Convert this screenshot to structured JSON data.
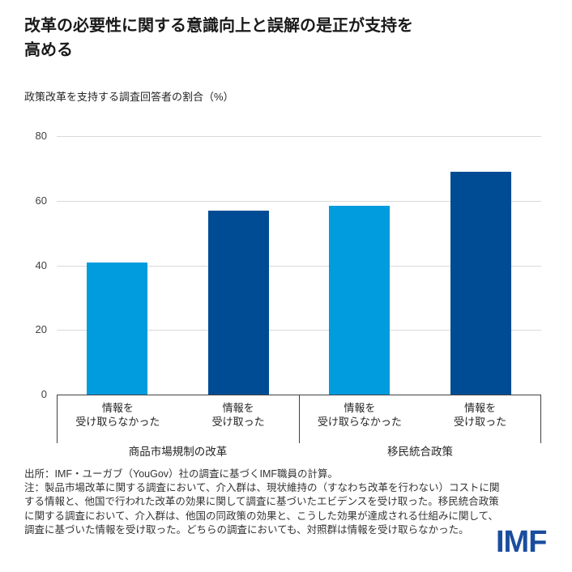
{
  "header": {
    "title_lines": [
      "改革の必要性に関する意識向上と誤解の是正が支持を",
      "高める"
    ],
    "subtitle": "政策改革を支持する調査回答者の割合（%）"
  },
  "chart_data": {
    "type": "bar",
    "title": "改革の必要性に関する意識向上と誤解の是正が支持を高める",
    "subtitle": "政策改革を支持する調査回答者の割合（%）",
    "xlabel": "",
    "ylabel": "",
    "ylim": [
      0,
      80
    ],
    "yticks": [
      0,
      20,
      40,
      60,
      80
    ],
    "grid": true,
    "legend": "none",
    "colors": {
      "no_info": "#009CDE",
      "info": "#004C94"
    },
    "groups": [
      {
        "label": "商品市場規制の改革",
        "bars": [
          {
            "label_lines": [
              "情報を",
              "受け取らなかった"
            ],
            "value": 41,
            "color": "#009CDE"
          },
          {
            "label_lines": [
              "情報を",
              "受け取った"
            ],
            "value": 57,
            "color": "#004C94"
          }
        ]
      },
      {
        "label": "移民統合政策",
        "bars": [
          {
            "label_lines": [
              "情報を",
              "受け取らなかった"
            ],
            "value": 58.5,
            "color": "#009CDE"
          },
          {
            "label_lines": [
              "情報を",
              "受け取った"
            ],
            "value": 69,
            "color": "#004C94"
          }
        ]
      }
    ]
  },
  "footer": {
    "source": "出所：IMF・ユーガブ（YouGov）社の調査に基づくIMF職員の計算。",
    "note": "注：製品市場改革に関する調査において、介入群は、現状維持の（すなわち改革を行わない）コストに関する情報と、他国で行われた改革の効果に関して調査に基づいたエビデンスを受け取った。移民統合政策に関する調査において、介入群は、他国の同政策の効果と、こうした効果が達成される仕組みに関して、調査に基づいた情報を受け取った。どちらの調査においても、対照群は情報を受け取らなかった。",
    "logo": "IMF",
    "logo_color": "#1a4d9e"
  }
}
